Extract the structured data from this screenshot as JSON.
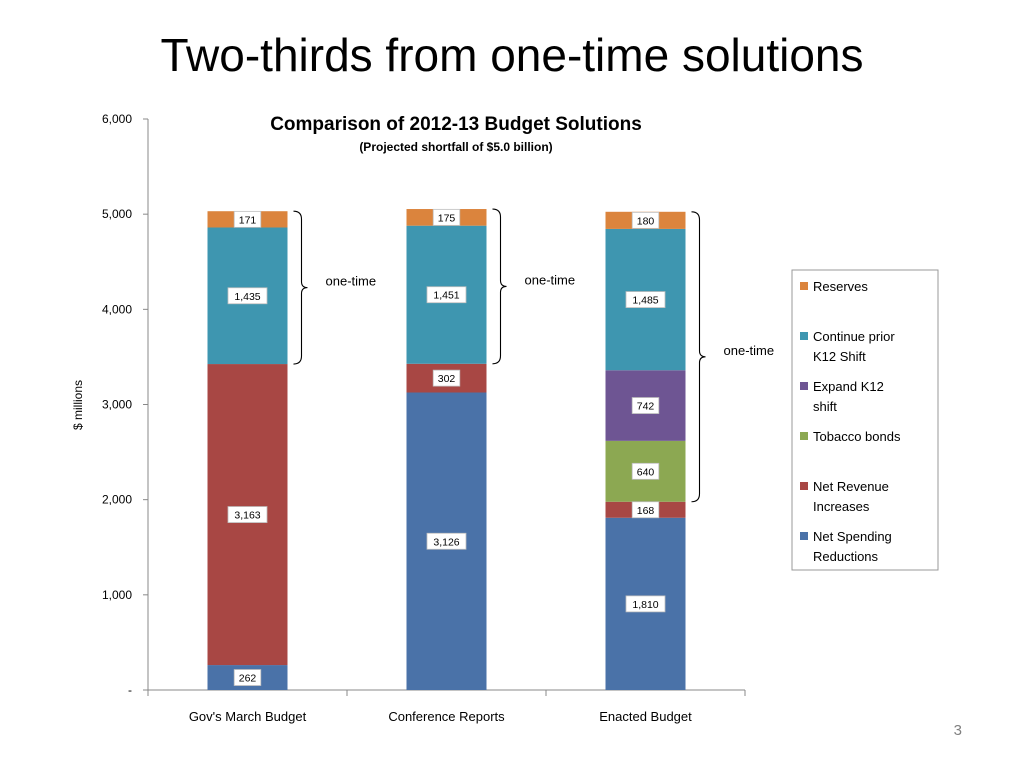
{
  "slide": {
    "title": "Two-thirds from one-time solutions",
    "page_number": "3"
  },
  "chart_data": {
    "type": "bar",
    "stacked": true,
    "title": "Comparison of 2012-13 Budget Solutions",
    "subtitle": "(Projected shortfall of $5.0 billion)",
    "ylabel": "$ millions",
    "xlabel": "",
    "ylim": [
      0,
      6000
    ],
    "yticks": [
      0,
      1000,
      2000,
      3000,
      4000,
      5000,
      6000
    ],
    "ytick_labels": [
      "-",
      "1,000",
      "2,000",
      "3,000",
      "4,000",
      "5,000",
      "6,000"
    ],
    "categories": [
      "Gov's March Budget",
      "Conference Reports",
      "Enacted Budget"
    ],
    "series": [
      {
        "name": "Net Spending Reductions",
        "color": "#4A72A8",
        "values": [
          262,
          3126,
          1810
        ],
        "labels": [
          "262",
          "3,126",
          "1,810"
        ]
      },
      {
        "name": "Net Revenue Increases",
        "color": "#A84744",
        "values": [
          3163,
          302,
          168
        ],
        "labels": [
          "3,163",
          "302",
          "168"
        ]
      },
      {
        "name": "Tobacco bonds",
        "color": "#8CA852",
        "values": [
          0,
          0,
          640
        ],
        "labels": [
          "",
          "",
          "640"
        ]
      },
      {
        "name": "Expand K12 shift",
        "color": "#6E5593",
        "values": [
          0,
          0,
          742
        ],
        "labels": [
          "",
          "",
          "742"
        ]
      },
      {
        "name": "Continue prior K12 Shift",
        "color": "#3E96B0",
        "values": [
          1435,
          1451,
          1485
        ],
        "labels": [
          "1,435",
          "1,451",
          "1,485"
        ]
      },
      {
        "name": "Reserves",
        "color": "#DB843D",
        "values": [
          171,
          175,
          180
        ],
        "labels": [
          "171",
          "175",
          "180"
        ]
      }
    ],
    "legend_position": "right",
    "legend_order": [
      "Reserves",
      "Continue prior K12 Shift",
      "Expand K12 shift",
      "Tobacco bonds",
      "Net Revenue Increases",
      "Net Spending Reductions"
    ],
    "annotations": [
      {
        "text": "one-time",
        "category": "Gov's March Budget",
        "from_series": "Continue prior K12 Shift",
        "to_series": "Reserves"
      },
      {
        "text": "one-time",
        "category": "Conference Reports",
        "from_series": "Continue prior K12 Shift",
        "to_series": "Reserves"
      },
      {
        "text": "one-time",
        "category": "Enacted Budget",
        "from_series": "Tobacco bonds",
        "to_series": "Reserves"
      }
    ],
    "grid": false
  }
}
